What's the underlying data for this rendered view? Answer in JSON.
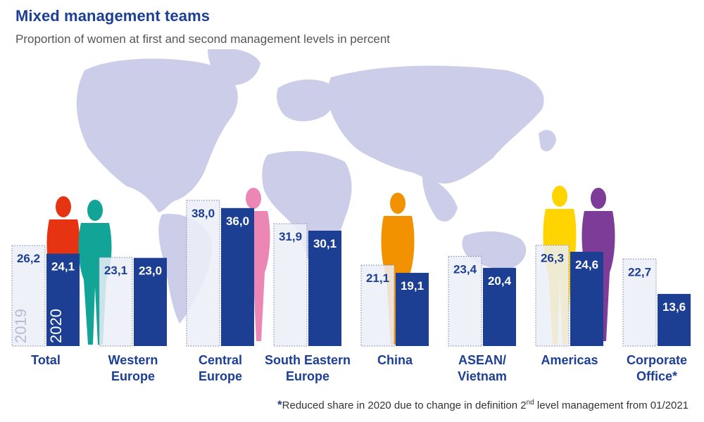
{
  "title": "Mixed management teams",
  "subtitle": "Proportion of women at first and second management levels in percent",
  "footnote": {
    "star": "*",
    "text_before": "Reduced share in 2020 due to change in definition 2",
    "sup": "nd",
    "text_after": " level management from 01/2021"
  },
  "colors": {
    "accent": "#1c3f94",
    "bar2019_fill": "#eceef8",
    "bar2019_border": "#8c91b5",
    "map": "#b7b9e0",
    "silhouettes": [
      "#e63312",
      "#12a597",
      "#ec86b4",
      "#f39200",
      "#ffd400",
      "#7d3c98"
    ]
  },
  "chart_data": {
    "type": "bar",
    "title": "Mixed management teams",
    "subtitle": "Proportion of women at first and second management levels in percent",
    "ylabel": "",
    "xlabel": "",
    "ylim": [
      0,
      40
    ],
    "legend": "inside first group (rotated year labels)",
    "categories": [
      [
        "Total"
      ],
      [
        "Western",
        "Europe"
      ],
      [
        "Central",
        "Europe"
      ],
      [
        "South Eastern",
        "Europe"
      ],
      [
        "China"
      ],
      [
        "ASEAN/",
        "Vietnam"
      ],
      [
        "Americas"
      ],
      [
        "Corporate",
        "Office*"
      ]
    ],
    "series": [
      {
        "name": "2019",
        "values": [
          26.2,
          23.1,
          38.0,
          31.9,
          21.1,
          23.4,
          26.3,
          22.7
        ],
        "labels": [
          "26,2",
          "23,1",
          "38,0",
          "31,9",
          "21,1",
          "23,4",
          "26,3",
          "22,7"
        ]
      },
      {
        "name": "2020",
        "values": [
          24.1,
          23.0,
          36.0,
          30.1,
          19.1,
          20.4,
          24.6,
          13.6
        ],
        "labels": [
          "24,1",
          "23,0",
          "36,0",
          "30,1",
          "19,1",
          "20,4",
          "24,6",
          "13,6"
        ]
      }
    ]
  }
}
